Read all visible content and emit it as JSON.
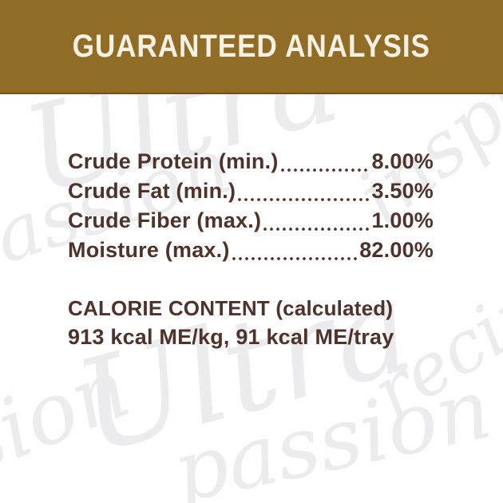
{
  "colors": {
    "band": "#906C27",
    "band_border": "#6E501A",
    "band_text": "#F6F1E3",
    "text": "#4D332B",
    "watermark": "#ECECEF",
    "background": "#FFFFFF"
  },
  "header": {
    "title": "GUARANTEED ANALYSIS"
  },
  "analysis": {
    "rows": [
      {
        "label": "Crude Protein (min.)",
        "value": "8.00%"
      },
      {
        "label": "Crude Fat (min.)",
        "value": "3.50%"
      },
      {
        "label": "Crude Fiber (max.)",
        "value": "1.00%"
      },
      {
        "label": "Moisture (max.)",
        "value": "82.00%"
      }
    ]
  },
  "calorie": {
    "title": "CALORIE CONTENT",
    "title_note": "(calculated)",
    "values": "913 kcal ME/kg, 91 kcal ME/tray"
  },
  "watermark": {
    "items": [
      "Ultra",
      "inspired",
      "passion",
      "recipe",
      "Ultra",
      "passion",
      "sion"
    ]
  }
}
